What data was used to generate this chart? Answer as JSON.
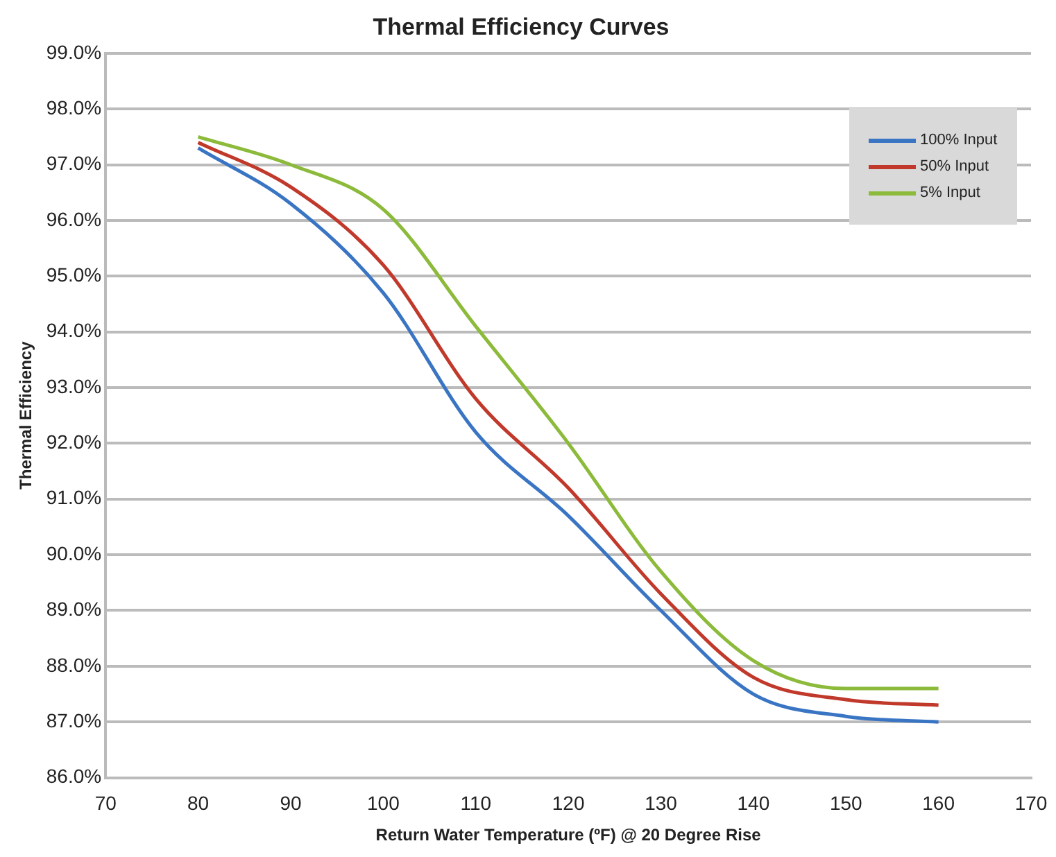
{
  "chart_data": {
    "type": "line",
    "title": "Thermal Efficiency Curves",
    "xlabel": "Return Water Temperature (ºF) @ 20 Degree Rise",
    "ylabel": "Thermal Efficiency",
    "x": [
      80,
      90,
      100,
      110,
      120,
      130,
      140,
      150,
      160
    ],
    "series": [
      {
        "name": "100% Input",
        "color": "#3a75c4",
        "values": [
          97.3,
          96.3,
          94.7,
          92.2,
          90.7,
          89.0,
          87.5,
          87.1,
          87.0
        ]
      },
      {
        "name": "50% Input",
        "color": "#c0392b",
        "values": [
          97.4,
          96.6,
          95.2,
          92.8,
          91.2,
          89.3,
          87.8,
          87.4,
          87.3
        ]
      },
      {
        "name": "5% Input",
        "color": "#8cba3a",
        "values": [
          97.5,
          97.0,
          96.2,
          94.1,
          92.0,
          89.7,
          88.1,
          87.6,
          87.6
        ]
      }
    ],
    "xlim": [
      70,
      170
    ],
    "xticks": [
      70,
      80,
      90,
      100,
      110,
      120,
      130,
      140,
      150,
      160,
      170
    ],
    "ylim": [
      86,
      99
    ],
    "yticks": [
      {
        "value": 86,
        "label": "86.0%"
      },
      {
        "value": 87,
        "label": "87.0%"
      },
      {
        "value": 88,
        "label": "88.0%"
      },
      {
        "value": 89,
        "label": "89.0%"
      },
      {
        "value": 90,
        "label": "90.0%"
      },
      {
        "value": 91,
        "label": "91.0%"
      },
      {
        "value": 92,
        "label": "92.0%"
      },
      {
        "value": 93,
        "label": "93.0%"
      },
      {
        "value": 94,
        "label": "94.0%"
      },
      {
        "value": 95,
        "label": "95.0%"
      },
      {
        "value": 96,
        "label": "96.0%"
      },
      {
        "value": 97,
        "label": "97.0%"
      },
      {
        "value": 98,
        "label": "98.0%"
      },
      {
        "value": 99,
        "label": "99.0%"
      }
    ],
    "grid": "y",
    "legend": "top right",
    "marker": "none",
    "line_style": "solid"
  }
}
